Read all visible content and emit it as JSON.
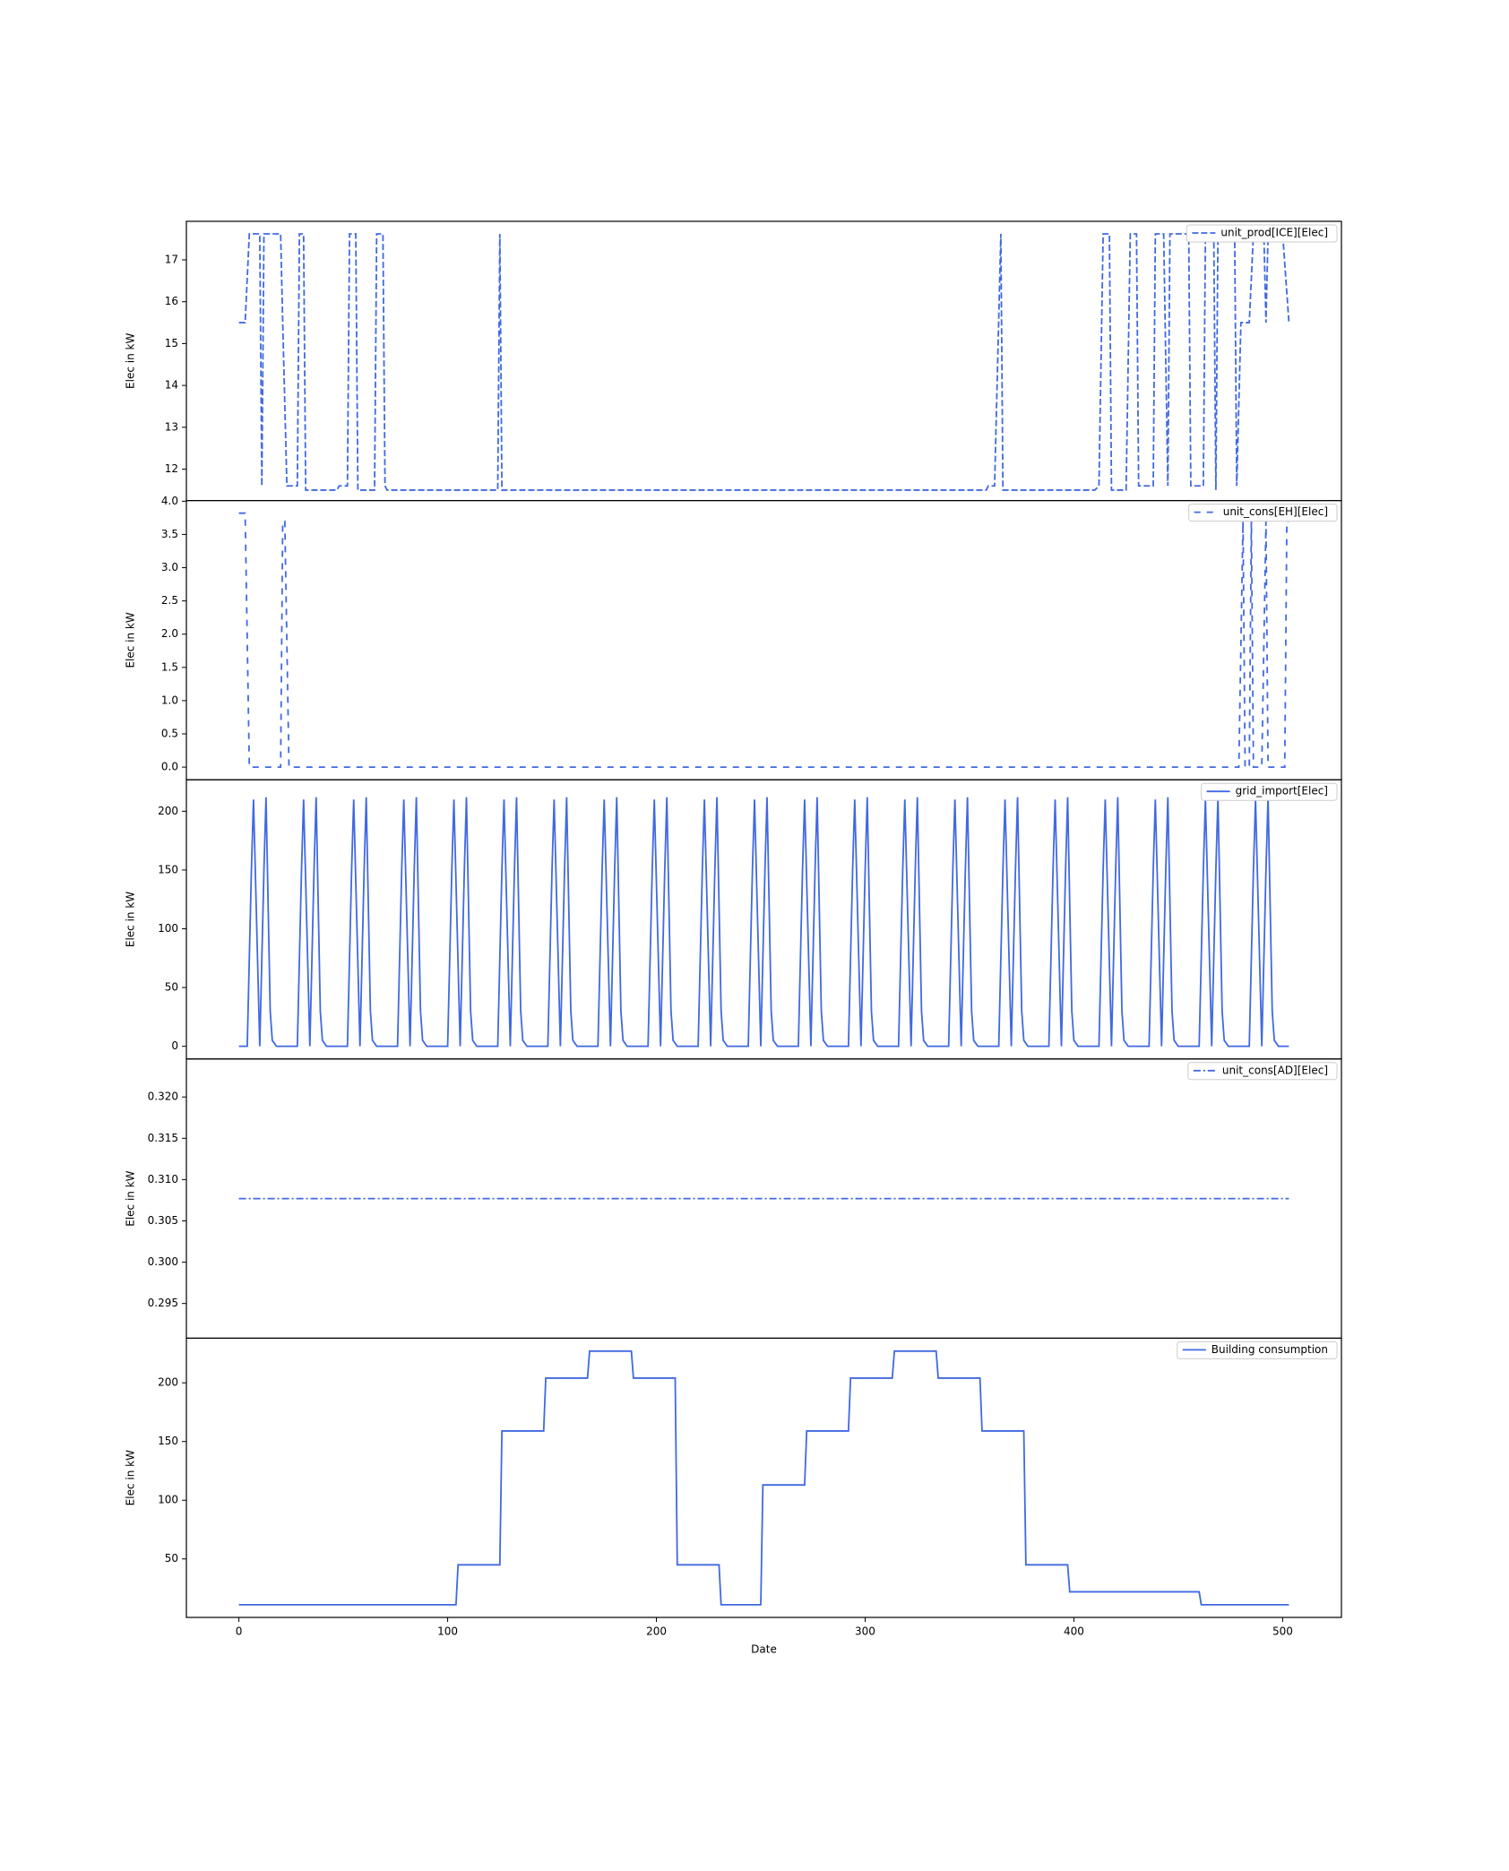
{
  "chart_data": [
    {
      "type": "line",
      "ylabel": "Elec in kW",
      "legend": "upper right",
      "x": [
        0,
        3,
        5,
        10,
        11,
        12,
        20,
        21,
        23,
        28,
        29,
        31,
        32,
        47,
        48,
        52,
        53,
        56,
        57,
        65,
        66,
        69,
        70,
        71,
        124,
        125,
        126,
        358,
        359,
        362,
        365,
        366,
        410,
        412,
        414,
        417,
        418,
        425,
        427,
        430,
        431,
        438,
        439,
        443,
        445,
        446,
        455,
        456,
        462,
        463,
        467,
        468,
        469,
        477,
        478,
        480,
        484,
        486,
        491,
        492,
        493,
        500,
        503
      ],
      "series": [
        {
          "name": "unit_prod[ICE][Elec]",
          "color": "#4169e1",
          "linestyle": "dashed",
          "values": [
            15.5,
            15.5,
            17.62,
            17.62,
            11.6,
            17.62,
            17.62,
            15.5,
            11.6,
            11.6,
            17.62,
            17.62,
            11.5,
            11.5,
            11.6,
            11.6,
            17.62,
            17.62,
            11.5,
            11.5,
            17.62,
            17.62,
            11.6,
            11.5,
            11.5,
            17.62,
            11.5,
            11.5,
            11.6,
            11.6,
            17.62,
            11.5,
            11.5,
            11.6,
            17.62,
            17.62,
            11.5,
            11.5,
            17.62,
            17.62,
            11.6,
            11.6,
            17.62,
            17.62,
            11.6,
            17.62,
            17.62,
            11.6,
            11.6,
            17.62,
            17.62,
            11.5,
            17.62,
            17.62,
            11.6,
            15.5,
            15.5,
            17.62,
            17.62,
            15.5,
            17.62,
            17.62,
            15.5
          ]
        }
      ],
      "xlim": [
        -25.15,
        528.15
      ],
      "ylim": [
        11.25,
        17.92
      ],
      "yticks": [
        12,
        13,
        14,
        15,
        16,
        17
      ]
    },
    {
      "type": "line",
      "ylabel": "Elec in kW",
      "legend": "upper right",
      "x": [
        0,
        3,
        5,
        20,
        21,
        22,
        24,
        479,
        481,
        482,
        484,
        485,
        486,
        490,
        492,
        493,
        501,
        502,
        503
      ],
      "series": [
        {
          "name": "unit_cons[EH][Elec]",
          "color": "#4169e1",
          "linestyle": "loosedash",
          "values": [
            3.82,
            3.82,
            0,
            0,
            3.7,
            3.7,
            0,
            0,
            3.7,
            0,
            0,
            3.7,
            0,
            0,
            3.7,
            0,
            0,
            3.7,
            3.7
          ]
        }
      ],
      "xlim": [
        -25.15,
        528.15
      ],
      "ylim": [
        -0.19,
        4.01
      ],
      "yticks": [
        {
          "value": 0,
          "label": "0.0"
        },
        0.5,
        {
          "value": 1,
          "label": "1.0"
        },
        1.5,
        {
          "value": 2,
          "label": "2.0"
        },
        2.5,
        {
          "value": 3,
          "label": "3.0"
        },
        3.5,
        {
          "value": 4,
          "label": "4.0"
        }
      ]
    },
    {
      "type": "line",
      "ylabel": "Elec in kW",
      "legend": "upper right",
      "x": [
        0,
        4,
        6,
        7,
        10,
        12,
        13,
        15,
        16,
        18,
        24,
        28,
        30,
        31,
        34,
        36,
        37,
        39,
        40,
        42,
        48,
        52,
        54,
        55,
        58,
        60,
        61,
        63,
        64,
        66,
        72,
        76,
        78,
        79,
        82,
        84,
        85,
        87,
        88,
        90,
        96,
        100,
        102,
        103,
        106,
        108,
        109,
        111,
        112,
        114,
        120,
        124,
        126,
        127,
        130,
        132,
        133,
        135,
        136,
        138,
        144,
        148,
        150,
        151,
        154,
        156,
        157,
        159,
        160,
        162,
        168,
        172,
        174,
        175,
        178,
        180,
        181,
        183,
        184,
        186,
        192,
        196,
        198,
        199,
        202,
        204,
        205,
        207,
        208,
        210,
        216,
        220,
        222,
        223,
        226,
        228,
        229,
        231,
        232,
        234,
        240,
        244,
        246,
        247,
        250,
        252,
        253,
        255,
        256,
        258,
        264,
        268,
        270,
        271,
        274,
        276,
        277,
        279,
        280,
        282,
        288,
        292,
        294,
        295,
        298,
        300,
        301,
        303,
        304,
        306,
        312,
        316,
        318,
        319,
        322,
        324,
        325,
        327,
        328,
        330,
        336,
        340,
        342,
        343,
        346,
        348,
        349,
        351,
        352,
        354,
        360,
        364,
        366,
        367,
        370,
        372,
        373,
        375,
        376,
        378,
        384,
        388,
        390,
        391,
        394,
        396,
        397,
        399,
        400,
        402,
        408,
        412,
        414,
        415,
        418,
        420,
        421,
        423,
        424,
        426,
        432,
        436,
        438,
        439,
        442,
        444,
        445,
        447,
        448,
        450,
        456,
        460,
        462,
        463,
        466,
        468,
        469,
        471,
        472,
        474,
        480,
        484,
        486,
        487,
        490,
        492,
        493,
        495,
        496,
        498,
        503
      ],
      "series": [
        {
          "name": "grid_import[Elec]",
          "color": "#4169e1",
          "linestyle": "solid",
          "values": [
            0,
            0,
            150,
            210,
            0,
            150,
            212,
            30,
            5,
            0,
            0,
            0,
            150,
            210,
            0,
            150,
            212,
            30,
            5,
            0,
            0,
            0,
            150,
            210,
            0,
            150,
            212,
            30,
            5,
            0,
            0,
            0,
            150,
            210,
            0,
            150,
            212,
            30,
            5,
            0,
            0,
            0,
            150,
            210,
            0,
            150,
            212,
            30,
            5,
            0,
            0,
            0,
            150,
            210,
            0,
            150,
            212,
            30,
            5,
            0,
            0,
            0,
            150,
            210,
            0,
            150,
            212,
            30,
            5,
            0,
            0,
            0,
            150,
            210,
            0,
            150,
            212,
            30,
            5,
            0,
            0,
            0,
            150,
            210,
            0,
            150,
            212,
            30,
            5,
            0,
            0,
            0,
            150,
            210,
            0,
            150,
            212,
            30,
            5,
            0,
            0,
            0,
            150,
            210,
            0,
            150,
            212,
            30,
            5,
            0,
            0,
            0,
            150,
            210,
            0,
            150,
            212,
            30,
            5,
            0,
            0,
            0,
            150,
            210,
            0,
            150,
            212,
            30,
            5,
            0,
            0,
            0,
            150,
            210,
            0,
            150,
            212,
            30,
            5,
            0,
            0,
            0,
            150,
            210,
            0,
            150,
            212,
            30,
            5,
            0,
            0,
            0,
            150,
            210,
            0,
            150,
            212,
            30,
            5,
            0,
            0,
            0,
            150,
            210,
            0,
            150,
            212,
            30,
            5,
            0,
            0,
            0,
            150,
            210,
            0,
            150,
            212,
            30,
            5,
            0,
            0,
            0,
            150,
            210,
            0,
            150,
            212,
            30,
            5,
            0,
            0,
            0,
            150,
            210,
            0,
            150,
            212,
            30,
            5,
            0,
            0,
            0,
            150,
            210,
            0,
            150,
            212,
            30,
            5,
            0,
            0
          ]
        }
      ],
      "xlim": [
        -25.15,
        528.15
      ],
      "ylim": [
        -10.8,
        226.8
      ],
      "yticks": [
        0,
        50,
        100,
        150,
        200
      ]
    },
    {
      "type": "line",
      "ylabel": "Elec in kW",
      "legend": "upper right",
      "x": [
        0,
        503
      ],
      "series": [
        {
          "name": "unit_cons[AD][Elec]",
          "color": "#4169e1",
          "linestyle": "dashdot",
          "values": [
            0.3077,
            0.3077
          ]
        }
      ],
      "xlim": [
        -25.15,
        528.15
      ],
      "ylim": [
        0.2908,
        0.3246
      ],
      "yticks": [
        0.295,
        {
          "value": 0.3,
          "label": "0.300"
        },
        0.305,
        {
          "value": 0.31,
          "label": "0.310"
        },
        0.315,
        {
          "value": 0.32,
          "label": "0.320"
        }
      ]
    },
    {
      "type": "line",
      "ylabel": "Elec in kW",
      "xlabel": "Date",
      "legend": "upper right",
      "x": [
        0,
        104,
        105,
        125,
        126,
        146,
        147,
        167,
        168,
        188,
        189,
        209,
        210,
        230,
        231,
        250,
        251,
        271,
        272,
        292,
        293,
        313,
        314,
        334,
        335,
        355,
        356,
        376,
        377,
        397,
        398,
        460,
        461,
        503
      ],
      "series": [
        {
          "name": "Building consumption",
          "color": "#4169e1",
          "linestyle": "solid",
          "values": [
            11,
            11,
            45,
            45,
            159,
            159,
            204,
            204,
            227,
            227,
            204,
            204,
            45,
            45,
            11,
            11,
            113,
            113,
            159,
            159,
            204,
            204,
            227,
            227,
            204,
            204,
            159,
            159,
            45,
            45,
            22,
            22,
            11,
            11
          ]
        }
      ],
      "xlim": [
        -25.15,
        528.15
      ],
      "ylim": [
        0.2,
        238
      ],
      "yticks": [
        50,
        100,
        150,
        200
      ],
      "xticks": [
        0,
        100,
        200,
        300,
        400,
        500
      ]
    }
  ]
}
